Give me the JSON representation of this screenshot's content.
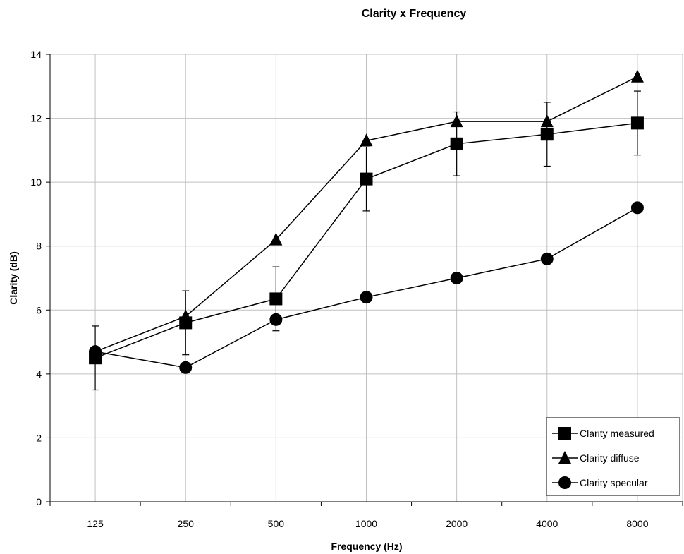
{
  "chart_data": {
    "type": "line",
    "title": "Clarity x Frequency",
    "xlabel": "Frequency (Hz)",
    "ylabel": "Clarity (dB)",
    "categories": [
      "125",
      "250",
      "500",
      "1000",
      "2000",
      "4000",
      "8000"
    ],
    "ylim": [
      0,
      14
    ],
    "yticks": [
      0,
      2,
      4,
      6,
      8,
      10,
      12,
      14
    ],
    "grid": true,
    "legend_position": "bottom-right",
    "series": [
      {
        "name": "Clarity measured",
        "marker": "square",
        "values": [
          4.5,
          5.6,
          6.35,
          10.1,
          11.2,
          11.5,
          11.85
        ],
        "error_bars": [
          1.0,
          1.0,
          1.0,
          1.0,
          1.0,
          1.0,
          1.0
        ]
      },
      {
        "name": "Clarity diffuse",
        "marker": "triangle",
        "values": [
          4.7,
          5.8,
          8.2,
          11.3,
          11.9,
          11.9,
          13.3
        ]
      },
      {
        "name": "Clarity specular",
        "marker": "circle",
        "values": [
          4.7,
          4.2,
          5.7,
          6.4,
          7.0,
          7.6,
          9.2
        ]
      }
    ],
    "colors": {
      "line": "#000000",
      "grid": "#c0c0c0",
      "background": "#ffffff"
    }
  }
}
